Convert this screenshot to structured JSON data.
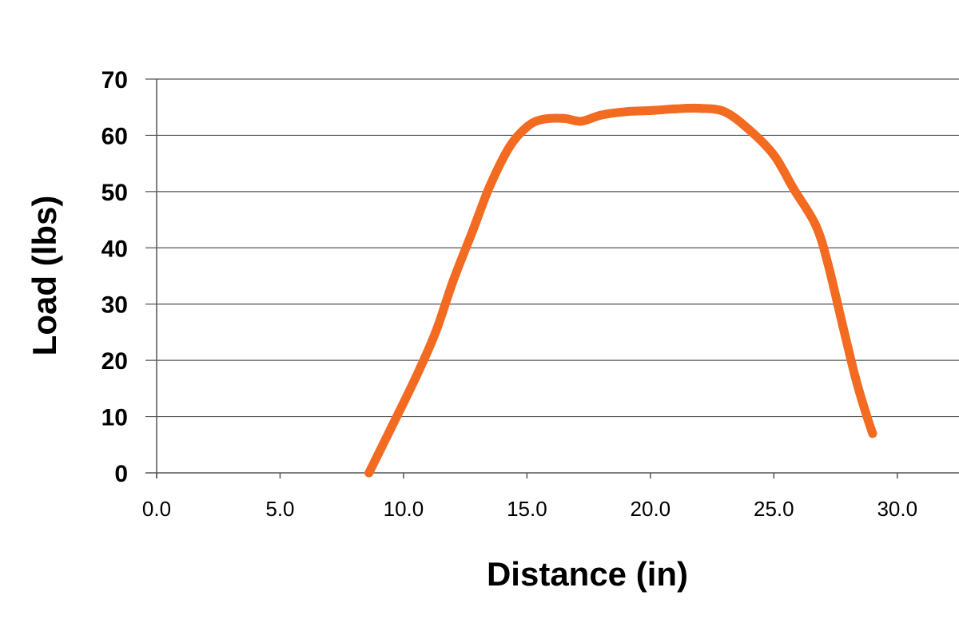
{
  "chart_data": {
    "type": "line",
    "title": "",
    "xlabel": "Distance (in)",
    "ylabel": "Load (lbs)",
    "xlim": [
      0,
      32.5
    ],
    "ylim": [
      0,
      70
    ],
    "x_ticks": [
      "0.0",
      "5.0",
      "10.0",
      "15.0",
      "20.0",
      "25.0",
      "30.0"
    ],
    "y_ticks": [
      "0",
      "10",
      "20",
      "30",
      "40",
      "50",
      "60",
      "70"
    ],
    "grid": true,
    "series": [
      {
        "color": "#f26b21",
        "x": [
          8.6,
          9.5,
          10.5,
          11.3,
          12.0,
          12.8,
          13.5,
          14.3,
          15.0,
          15.6,
          16.5,
          17.2,
          18.0,
          19.0,
          20.0,
          21.0,
          22.0,
          23.0,
          24.0,
          25.0,
          25.8,
          26.7,
          27.2,
          27.8,
          28.3,
          28.7,
          29.0
        ],
        "y": [
          0,
          8,
          17,
          25,
          34,
          43,
          51,
          58,
          61.5,
          62.8,
          63,
          62.5,
          63.6,
          64.2,
          64.4,
          64.7,
          64.8,
          64.2,
          61.0,
          56.5,
          50.5,
          44,
          37,
          26,
          17,
          11,
          7
        ]
      }
    ]
  }
}
